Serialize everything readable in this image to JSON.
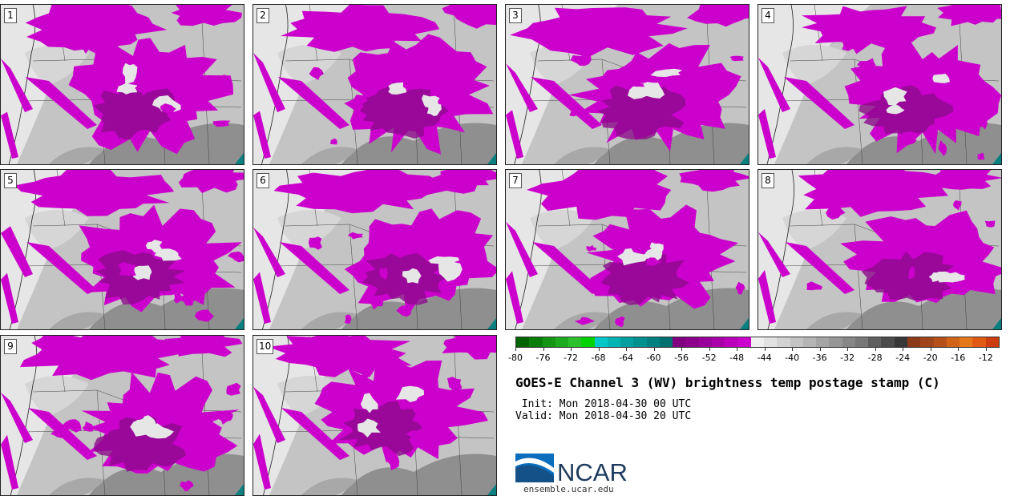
{
  "panels": [
    {
      "label": "1"
    },
    {
      "label": "2"
    },
    {
      "label": "3"
    },
    {
      "label": "4"
    },
    {
      "label": "5"
    },
    {
      "label": "6"
    },
    {
      "label": "7"
    },
    {
      "label": "8"
    },
    {
      "label": "9"
    },
    {
      "label": "10"
    }
  ],
  "colorbar": {
    "min": -80,
    "max": -10,
    "tick_labels": [
      "-80",
      "-76",
      "-72",
      "-68",
      "-64",
      "-60",
      "-56",
      "-52",
      "-48",
      "-44",
      "-40",
      "-36",
      "-32",
      "-28",
      "-24",
      "-20",
      "-16",
      "-12"
    ],
    "colors": [
      "#006400",
      "#0a7d0a",
      "#149614",
      "#1eaa1e",
      "#2cc12c",
      "#00d200",
      "#00c8c8",
      "#00b4b4",
      "#00a0a0",
      "#009090",
      "#008080",
      "#007070",
      "#800080",
      "#8c008c",
      "#9a009a",
      "#aa00aa",
      "#bb00bb",
      "#cc00cc",
      "#f0f0f0",
      "#e2e2e2",
      "#d2d2d2",
      "#c3c3c3",
      "#b4b4b4",
      "#a5a5a5",
      "#969696",
      "#878787",
      "#787878",
      "#5f5f5f",
      "#4b4b4b",
      "#373737",
      "#8b3a1a",
      "#a0451a",
      "#b5501a",
      "#d2641a",
      "#e6781a",
      "#e05a14",
      "#cc3c10"
    ]
  },
  "title": "GOES-E Channel 3 (WV) brightness temp postage stamp (C)",
  "init_line": " Init: Mon 2018-04-30 00 UTC",
  "valid_line": "Valid: Mon 2018-04-30 20 UTC",
  "logo": {
    "text": "NCAR",
    "url_text": "ensemble.ucar.edu",
    "blue": "#0a6ebd",
    "dark": "#1d3a5c"
  },
  "map_colors": {
    "cold_cloud": "#cc00cc",
    "cold_core": "#8c0a8c",
    "light_gray": "#e6e6e6",
    "mid_gray": "#c4c4c4",
    "dark_gray": "#8f8f8f",
    "teal": "#0a8080"
  }
}
